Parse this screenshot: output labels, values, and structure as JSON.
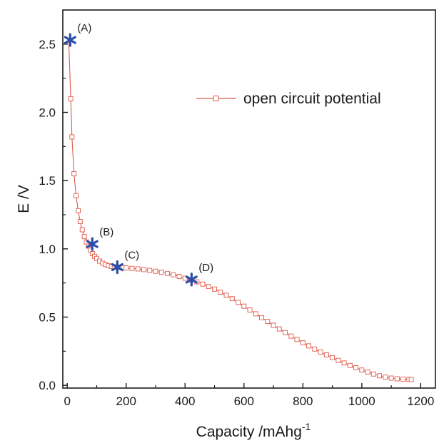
{
  "chart_data": {
    "type": "line",
    "title": "",
    "xlabel": "Capacity /mAhg",
    "xlabel_superscript": "-1",
    "ylabel": "E /V",
    "xlim": [
      -15,
      1250
    ],
    "ylim": [
      -0.02,
      2.75
    ],
    "xticks": [
      0,
      200,
      400,
      600,
      800,
      1000,
      1200
    ],
    "yticks": [
      0.0,
      0.5,
      1.0,
      1.5,
      2.0,
      2.5
    ],
    "xtick_labels": [
      "0",
      "200",
      "400",
      "600",
      "800",
      "1000",
      "1200"
    ],
    "ytick_labels": [
      "0.0",
      "0.5",
      "1.0",
      "1.5",
      "2.0",
      "2.5"
    ],
    "grid": false,
    "legend_position": "top-right",
    "series": [
      {
        "name": "open circuit potential",
        "color": "#e05a4a",
        "marker": "open-square",
        "x": [
          5,
          12,
          16,
          23,
          30,
          37,
          44,
          51,
          58,
          65,
          72,
          79,
          86,
          93,
          100,
          110,
          120,
          130,
          140,
          150,
          160,
          170,
          180,
          190,
          200,
          220,
          240,
          260,
          280,
          300,
          320,
          340,
          360,
          380,
          400,
          420,
          440,
          460,
          480,
          500,
          520,
          540,
          560,
          580,
          600,
          620,
          640,
          660,
          680,
          700,
          720,
          740,
          760,
          780,
          800,
          820,
          840,
          860,
          880,
          900,
          920,
          940,
          960,
          980,
          1000,
          1020,
          1040,
          1060,
          1080,
          1100,
          1120,
          1140,
          1160,
          1168
        ],
        "y": [
          2.53,
          2.1,
          1.82,
          1.55,
          1.39,
          1.28,
          1.2,
          1.14,
          1.09,
          1.05,
          1.02,
          0.99,
          0.965,
          0.945,
          0.93,
          0.91,
          0.895,
          0.885,
          0.877,
          0.871,
          0.868,
          0.866,
          0.864,
          0.862,
          0.86,
          0.857,
          0.853,
          0.848,
          0.842,
          0.836,
          0.828,
          0.82,
          0.81,
          0.798,
          0.785,
          0.772,
          0.758,
          0.742,
          0.724,
          0.705,
          0.683,
          0.66,
          0.635,
          0.608,
          0.58,
          0.552,
          0.524,
          0.496,
          0.468,
          0.44,
          0.413,
          0.387,
          0.361,
          0.336,
          0.312,
          0.289,
          0.266,
          0.244,
          0.223,
          0.203,
          0.183,
          0.164,
          0.146,
          0.129,
          0.112,
          0.097,
          0.083,
          0.07,
          0.06,
          0.053,
          0.048,
          0.045,
          0.044,
          0.043
        ]
      }
    ],
    "annotations": [
      {
        "label": "(A)",
        "x": 10,
        "y": 2.53,
        "marker": "asterisk",
        "color": "#2c4ea8"
      },
      {
        "label": "(B)",
        "x": 85,
        "y": 1.035,
        "marker": "asterisk",
        "color": "#2c4ea8"
      },
      {
        "label": "(C)",
        "x": 170,
        "y": 0.866,
        "marker": "asterisk",
        "color": "#2c4ea8"
      },
      {
        "label": "(D)",
        "x": 422,
        "y": 0.775,
        "marker": "asterisk",
        "color": "#2c4ea8"
      }
    ]
  }
}
